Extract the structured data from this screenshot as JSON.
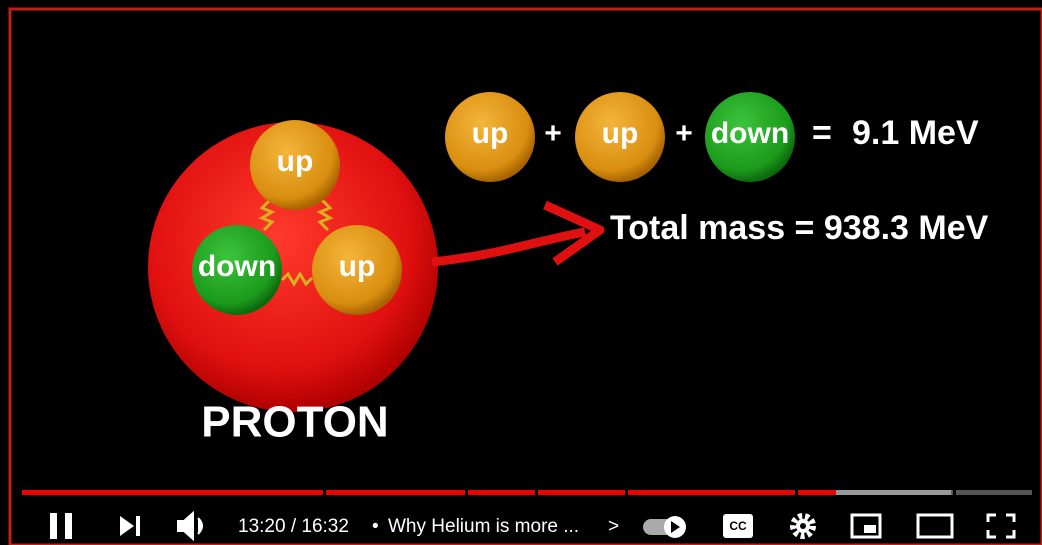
{
  "video": {
    "proton": {
      "quarks": [
        "up",
        "down",
        "up"
      ],
      "label": "PROTON"
    },
    "equation": {
      "terms": [
        "up",
        "+",
        "up",
        "+",
        "down",
        "="
      ],
      "result": "9.1 MeV"
    },
    "total": "Total mass = 938.3 MeV"
  },
  "player": {
    "time": "13:20 / 16:32",
    "separator": "•",
    "title": "Why Helium is more ...",
    "chevron": ">",
    "captions": "CC",
    "progress": {
      "played": 80.6,
      "buffered": 92
    }
  }
}
